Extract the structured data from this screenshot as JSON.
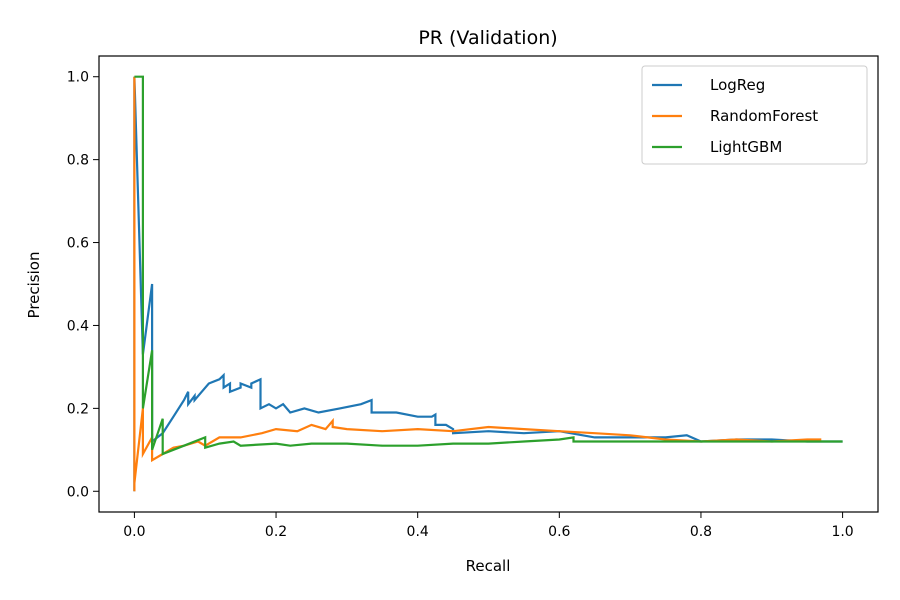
{
  "chart_data": {
    "type": "line",
    "title": "PR (Validation)",
    "xlabel": "Recall",
    "ylabel": "Precision",
    "xlim": [
      -0.05,
      1.05
    ],
    "ylim": [
      -0.05,
      1.05
    ],
    "xticks": [
      "0.0",
      "0.2",
      "0.4",
      "0.6",
      "0.8",
      "1.0"
    ],
    "yticks": [
      "0.0",
      "0.2",
      "0.4",
      "0.6",
      "0.8",
      "1.0"
    ],
    "grid": false,
    "legend_position": "top-right",
    "series": [
      {
        "name": "LogReg",
        "color": "#1f77b4",
        "x": [
          0.0,
          0.0,
          0.012,
          0.025,
          0.025,
          0.04,
          0.055,
          0.07,
          0.076,
          0.076,
          0.085,
          0.085,
          0.095,
          0.105,
          0.12,
          0.126,
          0.126,
          0.135,
          0.135,
          0.15,
          0.15,
          0.165,
          0.165,
          0.178,
          0.178,
          0.19,
          0.2,
          0.21,
          0.22,
          0.24,
          0.26,
          0.29,
          0.32,
          0.335,
          0.335,
          0.37,
          0.4,
          0.42,
          0.425,
          0.425,
          0.44,
          0.45,
          0.45,
          0.5,
          0.55,
          0.6,
          0.65,
          0.7,
          0.75,
          0.78,
          0.8,
          0.85,
          0.9,
          0.95,
          1.0
        ],
        "y": [
          0.0,
          1.0,
          0.33,
          0.5,
          0.12,
          0.14,
          0.18,
          0.22,
          0.24,
          0.21,
          0.23,
          0.22,
          0.24,
          0.26,
          0.27,
          0.28,
          0.25,
          0.26,
          0.24,
          0.25,
          0.26,
          0.25,
          0.26,
          0.27,
          0.2,
          0.21,
          0.2,
          0.21,
          0.19,
          0.2,
          0.19,
          0.2,
          0.21,
          0.22,
          0.19,
          0.19,
          0.18,
          0.18,
          0.185,
          0.16,
          0.16,
          0.15,
          0.14,
          0.145,
          0.14,
          0.145,
          0.13,
          0.13,
          0.13,
          0.135,
          0.12,
          0.125,
          0.125,
          0.12,
          0.12
        ]
      },
      {
        "name": "RandomForest",
        "color": "#ff7f0e",
        "x": [
          0.0,
          0.0,
          0.0,
          0.012,
          0.012,
          0.025,
          0.025,
          0.04,
          0.055,
          0.07,
          0.09,
          0.1,
          0.12,
          0.15,
          0.18,
          0.2,
          0.23,
          0.25,
          0.27,
          0.28,
          0.28,
          0.3,
          0.35,
          0.4,
          0.45,
          0.5,
          0.55,
          0.6,
          0.65,
          0.7,
          0.75,
          0.8,
          0.85,
          0.9,
          0.95,
          0.97
        ],
        "y": [
          1.0,
          0.0,
          0.02,
          0.2,
          0.09,
          0.13,
          0.075,
          0.09,
          0.105,
          0.11,
          0.12,
          0.11,
          0.13,
          0.13,
          0.14,
          0.15,
          0.145,
          0.16,
          0.15,
          0.17,
          0.155,
          0.15,
          0.145,
          0.15,
          0.145,
          0.155,
          0.15,
          0.145,
          0.14,
          0.135,
          0.125,
          0.12,
          0.125,
          0.12,
          0.125,
          0.125
        ]
      },
      {
        "name": "LightGBM",
        "color": "#2ca02c",
        "x": [
          0.0,
          0.0,
          0.012,
          0.012,
          0.025,
          0.025,
          0.04,
          0.04,
          0.055,
          0.07,
          0.1,
          0.1,
          0.12,
          0.14,
          0.15,
          0.2,
          0.22,
          0.25,
          0.3,
          0.35,
          0.4,
          0.45,
          0.5,
          0.55,
          0.6,
          0.62,
          0.62,
          0.65,
          0.7,
          0.75,
          0.8,
          0.85,
          0.9,
          0.95,
          1.0
        ],
        "y": [
          1.0,
          1.0,
          1.0,
          0.2,
          0.34,
          0.1,
          0.175,
          0.09,
          0.1,
          0.11,
          0.13,
          0.105,
          0.115,
          0.12,
          0.11,
          0.115,
          0.11,
          0.115,
          0.115,
          0.11,
          0.11,
          0.115,
          0.115,
          0.12,
          0.125,
          0.13,
          0.12,
          0.12,
          0.12,
          0.12,
          0.12,
          0.12,
          0.12,
          0.12,
          0.12
        ]
      }
    ]
  }
}
